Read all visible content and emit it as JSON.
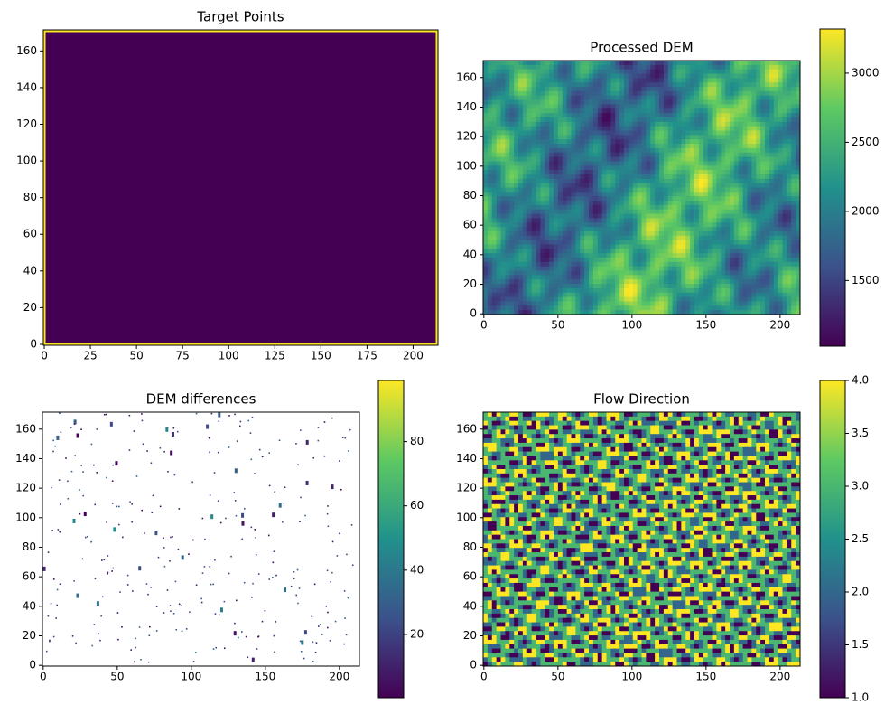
{
  "chart_data": [
    {
      "type": "image",
      "title": "Target Points",
      "colormap": "viridis",
      "xlim": [
        -0.5,
        213.5
      ],
      "ylim": [
        -0.5,
        171.5
      ],
      "xticks": [
        0,
        25,
        50,
        75,
        100,
        125,
        150,
        175,
        200
      ],
      "yticks": [
        0,
        20,
        40,
        60,
        80,
        100,
        120,
        140,
        160
      ]
    },
    {
      "type": "image",
      "title": "Processed DEM",
      "colormap": "viridis",
      "xlim": [
        -0.5,
        213.5
      ],
      "ylim": [
        -0.5,
        171.5
      ],
      "xticks": [
        0,
        50,
        100,
        150,
        200
      ],
      "yticks": [
        0,
        20,
        40,
        60,
        80,
        100,
        120,
        140,
        160
      ],
      "clim": [
        1025,
        3320
      ],
      "cticks": [
        1500,
        2000,
        2500,
        3000
      ]
    },
    {
      "type": "image",
      "title": "DEM differences",
      "colormap": "viridis",
      "xlim": [
        -0.5,
        213.5
      ],
      "ylim": [
        -0.5,
        171.5
      ],
      "xticks": [
        0,
        50,
        100,
        150,
        200
      ],
      "yticks": [
        0,
        20,
        40,
        60,
        80,
        100,
        120,
        140,
        160
      ],
      "clim": [
        0.3,
        99
      ],
      "cticks": [
        20,
        40,
        60,
        80
      ]
    },
    {
      "type": "image",
      "title": "Flow Direction",
      "colormap": "viridis",
      "xlim": [
        -0.5,
        213.5
      ],
      "ylim": [
        -0.5,
        171.5
      ],
      "xticks": [
        0,
        50,
        100,
        150,
        200
      ],
      "yticks": [
        0,
        20,
        40,
        60,
        80,
        100,
        120,
        140,
        160
      ],
      "clim": [
        1,
        4
      ],
      "cticks": [
        {
          "value": 1,
          "label": "1.0"
        },
        {
          "value": 1.5,
          "label": "1.5"
        },
        {
          "value": 2,
          "label": "2.0"
        },
        {
          "value": 2.5,
          "label": "2.5"
        },
        {
          "value": 3,
          "label": "3.0"
        },
        {
          "value": 3.5,
          "label": "3.5"
        },
        {
          "value": 4,
          "label": "4.0"
        }
      ]
    }
  ]
}
